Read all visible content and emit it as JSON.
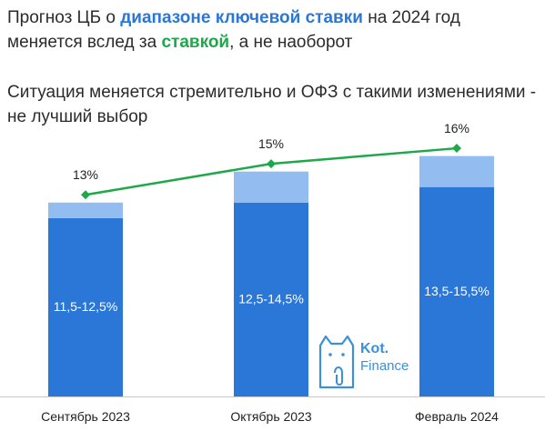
{
  "header": {
    "line1_part1": "Прогноз ЦБ о ",
    "line1_highlight": "диапазоне ключевой ставки",
    "line1_part2": " на 2024 год",
    "line2_part1": "меняется вслед за ",
    "line2_highlight": "ставкой",
    "line2_part2": ", а не наоборот",
    "subtitle": "Ситуация меняется стремительно и ОФЗ с такими изменениями - не лучший выбор"
  },
  "logo": {
    "brand": "Kot.",
    "sub": "Finance"
  },
  "colors": {
    "bar_dark": "#2a77d8",
    "bar_light": "#93bdf0",
    "line": "#1fa84a",
    "highlight_blue": "#2a77d8",
    "highlight_green": "#1fa84a"
  },
  "chart_data": {
    "type": "bar",
    "categories": [
      "Сентябрь 2023",
      "Октябрь 2023",
      "Февраль 2024"
    ],
    "series": [
      {
        "values_low": [
          11.5,
          12.5,
          13.5
        ],
        "values_high": [
          12.5,
          14.5,
          15.5
        ],
        "labels": [
          "11,5-12,5%",
          "12,5-14,5%",
          "13,5-15,5%"
        ]
      },
      {
        "type": "line",
        "values": [
          13,
          15,
          16
        ],
        "labels": [
          "13%",
          "15%",
          "16%"
        ]
      }
    ],
    "ylim": [
      0,
      17
    ],
    "grid": false,
    "legend": "none"
  }
}
